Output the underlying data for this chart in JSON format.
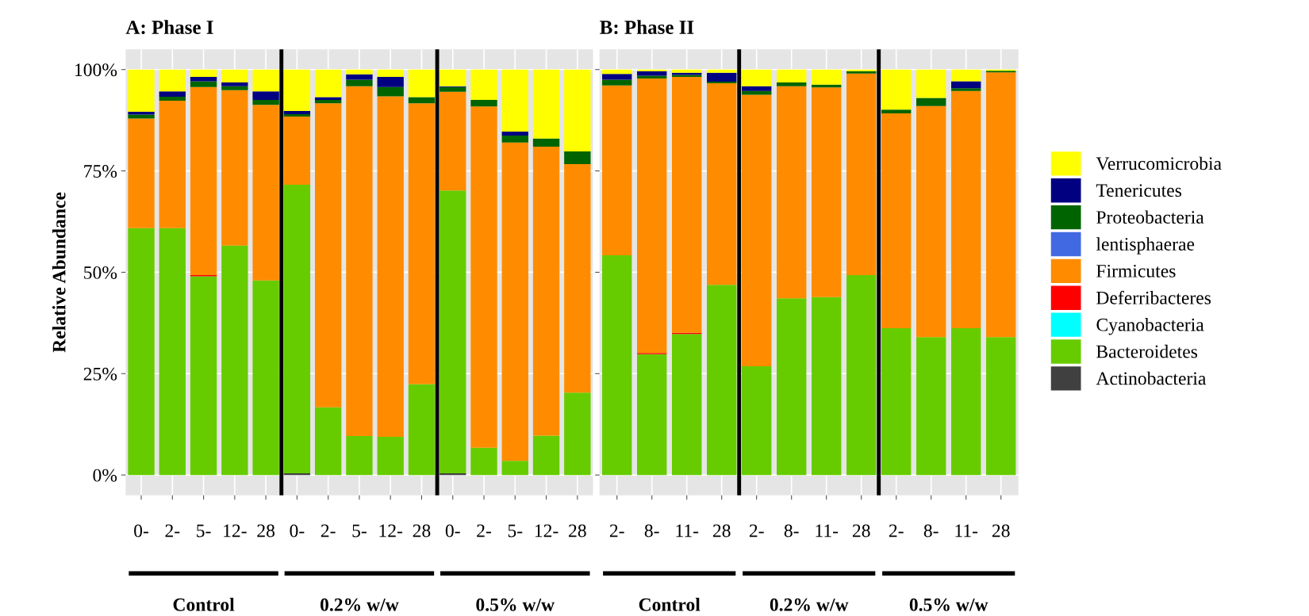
{
  "chart_data": [
    {
      "type": "bar",
      "stacked": true,
      "title": "A: Phase I",
      "ylabel": "Relative Abundance",
      "categories": [
        "0-",
        "2-",
        "5-",
        "12-",
        "28",
        "0-",
        "2-",
        "5-",
        "12-",
        "28",
        "0-",
        "2-",
        "5-",
        "12-",
        "28"
      ],
      "ylim": [
        -5,
        105
      ],
      "yticks": [
        {
          "value": 0,
          "label": "0%"
        },
        {
          "value": 25,
          "label": "25%"
        },
        {
          "value": 50,
          "label": "50%"
        },
        {
          "value": 75,
          "label": "75%"
        },
        {
          "value": 100,
          "label": "100%"
        }
      ],
      "grid": true,
      "legend": "right",
      "annotations": [
        "Control",
        "0.2% w/w",
        "0.5% w/w"
      ],
      "series": [
        {
          "name": "Actinobacteria",
          "color": "#404040",
          "values": [
            0,
            0,
            0,
            0,
            0,
            0.4,
            0,
            0,
            0,
            0,
            0.4,
            0,
            0,
            0,
            0
          ]
        },
        {
          "name": "Bacteroidetes",
          "color": "#66cc00",
          "values": [
            60.9,
            60.9,
            49.0,
            56.6,
            48.0,
            71.2,
            16.7,
            9.6,
            9.4,
            22.4,
            69.8,
            6.7,
            3.5,
            9.7,
            20.3
          ]
        },
        {
          "name": "Cyanobacteria",
          "color": "#00ffff",
          "values": [
            0,
            0,
            0,
            0,
            0,
            0,
            0,
            0,
            0,
            0,
            0,
            0,
            0,
            0,
            0
          ]
        },
        {
          "name": "Deferribacteres",
          "color": "#ff0000",
          "values": [
            0,
            0,
            0.3,
            0,
            0,
            0,
            0,
            0,
            0,
            0,
            0,
            0,
            0,
            0,
            0
          ]
        },
        {
          "name": "Firmicutes",
          "color": "#ff8c00",
          "values": [
            27.0,
            31.4,
            46.4,
            38.3,
            43.3,
            16.8,
            75.0,
            86.3,
            84.0,
            69.3,
            24.3,
            84.2,
            78.5,
            71.3,
            56.4
          ]
        },
        {
          "name": "lentisphaerae",
          "color": "#4169e1",
          "values": [
            0,
            0,
            0,
            0,
            0,
            0,
            0,
            0,
            0,
            0,
            0,
            0,
            0,
            0,
            0
          ]
        },
        {
          "name": "Proteobacteria",
          "color": "#006400",
          "values": [
            1.0,
            1.0,
            1.4,
            1.0,
            1.2,
            0.6,
            0.8,
            1.6,
            2.3,
            1.5,
            1.2,
            1.6,
            1.7,
            2.0,
            3.1
          ]
        },
        {
          "name": "Tenericutes",
          "color": "#000080",
          "values": [
            0.7,
            1.3,
            1.1,
            0.9,
            2.1,
            0.8,
            0.7,
            1.3,
            2.5,
            0,
            0.2,
            0,
            1.0,
            0,
            0
          ]
        },
        {
          "name": "Verrucomicrobia",
          "color": "#ffff00",
          "values": [
            10.4,
            5.4,
            1.8,
            3.2,
            5.4,
            10.2,
            6.8,
            1.2,
            1.8,
            6.8,
            4.1,
            7.5,
            15.3,
            17.0,
            20.2
          ]
        }
      ]
    },
    {
      "type": "bar",
      "stacked": true,
      "title": "B: Phase II",
      "categories": [
        "2-",
        "8-",
        "11-",
        "28",
        "2-",
        "8-",
        "11-",
        "28",
        "2-",
        "8-",
        "11-",
        "28"
      ],
      "ylim": [
        -5,
        105
      ],
      "yticks": [
        {
          "value": 0,
          "label": null
        },
        {
          "value": 25,
          "label": null
        },
        {
          "value": 50,
          "label": null
        },
        {
          "value": 75,
          "label": null
        },
        {
          "value": 100,
          "label": null
        }
      ],
      "tick_labels": "x",
      "grid": true,
      "annotations": [
        "Control",
        "0.2% w/w",
        "0.5% w/w"
      ],
      "series": [
        {
          "color": "#404040",
          "values": [
            0,
            0,
            0,
            0,
            0,
            0,
            0,
            0,
            0,
            0,
            0,
            0
          ]
        },
        {
          "color": "#66cc00",
          "values": [
            54.2,
            29.8,
            34.8,
            46.9,
            26.8,
            43.6,
            43.9,
            49.3,
            36.2,
            34.0,
            36.2,
            34.0
          ]
        },
        {
          "color": "#00ffff",
          "values": [
            0,
            0,
            0,
            0,
            0,
            0,
            0,
            0,
            0,
            0,
            0,
            0
          ]
        },
        {
          "color": "#ff0000",
          "values": [
            0,
            0.3,
            0.3,
            0,
            0,
            0,
            0,
            0,
            0,
            0,
            0,
            0
          ]
        },
        {
          "color": "#ff8c00",
          "values": [
            41.9,
            67.7,
            63.1,
            49.7,
            67.0,
            52.3,
            51.7,
            49.7,
            53.0,
            57.0,
            58.5,
            65.3
          ]
        },
        {
          "color": "#4169e1",
          "values": [
            0,
            0,
            0,
            0,
            0,
            0,
            0,
            0,
            0,
            0,
            0,
            0
          ]
        },
        {
          "color": "#006400",
          "values": [
            1.4,
            0.7,
            0.5,
            0.4,
            0.9,
            0.9,
            0.7,
            0.6,
            0.9,
            2.0,
            0.7,
            0.4
          ]
        },
        {
          "color": "#000080",
          "values": [
            1.4,
            1.1,
            0.5,
            2.2,
            1.2,
            0,
            0,
            0,
            0,
            0,
            1.7,
            0
          ]
        },
        {
          "color": "#ffff00",
          "values": [
            1.1,
            0.4,
            0.8,
            0.8,
            4.1,
            3.2,
            3.7,
            0.4,
            9.9,
            7.0,
            2.9,
            0.3
          ]
        }
      ]
    }
  ]
}
